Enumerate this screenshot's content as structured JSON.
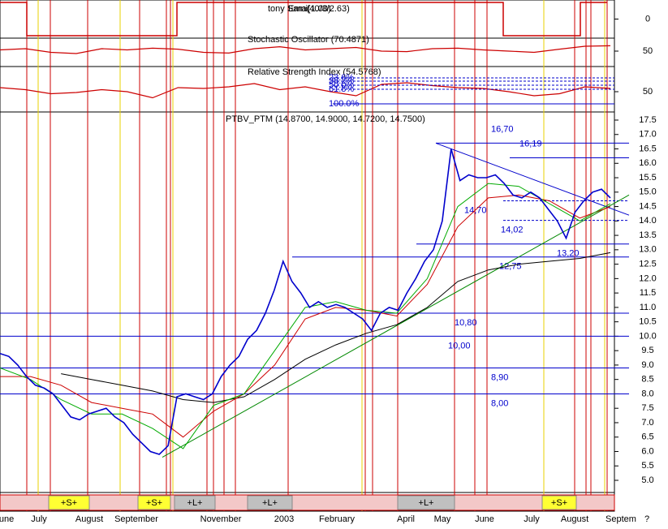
{
  "chart_data": [
    {
      "type": "step",
      "title": "tony Sami(1.00)",
      "subtitle": "Ema(40/3/2.63)",
      "color": "#cc0000",
      "values": [
        1,
        -1,
        1,
        -1,
        1
      ],
      "ylim": [
        -1,
        1
      ],
      "yticks": [
        0
      ]
    },
    {
      "type": "line",
      "title": "Stochastic Oscillator (70.4871)",
      "color": "#cc0000",
      "values": [
        55,
        60,
        45,
        40,
        60,
        55,
        62,
        58,
        45,
        42,
        60,
        68,
        55,
        60,
        65,
        50,
        48,
        60,
        62,
        55,
        50,
        45,
        58,
        70,
        72
      ],
      "ylim": [
        0,
        100
      ],
      "yticks": [
        50
      ]
    },
    {
      "type": "line",
      "title": "Relative Strength Index (54.5768)",
      "color": "#cc0000",
      "values": [
        60,
        55,
        45,
        48,
        55,
        50,
        35,
        60,
        58,
        62,
        70,
        55,
        62,
        50,
        40,
        68,
        72,
        65,
        60,
        58,
        50,
        40,
        45,
        62,
        58
      ],
      "annotations": [
        "23.6%",
        "38.2%",
        "50.0%",
        "61.8%",
        "100.0%"
      ],
      "ylim": [
        0,
        100
      ],
      "yticks": [
        50
      ]
    },
    {
      "type": "line",
      "title": "PTBV_PTM (14.8700, 14.9000, 14.7200, 14.7500)",
      "series": [
        {
          "color": "#0000cc",
          "values": [
            9.4,
            9.3,
            9.0,
            8.6,
            8.3,
            8.2,
            8.0,
            7.6,
            7.2,
            7.1,
            7.3,
            7.4,
            7.5,
            7.2,
            7.0,
            6.6,
            6.3,
            6.0,
            5.9,
            6.2,
            7.9,
            8.0,
            7.9,
            7.8,
            8.0,
            8.6,
            9.0,
            9.3,
            9.9,
            10.2,
            10.8,
            11.6,
            12.6,
            11.9,
            11.5,
            11.0,
            11.2,
            11.0,
            11.1,
            11.0,
            10.8,
            10.6,
            10.2,
            10.8,
            11.0,
            10.9,
            11.5,
            12.0,
            12.6,
            13.0,
            14.0,
            16.5,
            15.4,
            15.6,
            15.5,
            15.5,
            15.6,
            15.3,
            14.9,
            14.8,
            15.0,
            14.8,
            14.4,
            14.0,
            13.4,
            14.3,
            14.7,
            15.0,
            15.1,
            14.8
          ]
        },
        {
          "color": "#00aa00",
          "values": [
            8.9,
            8.5,
            7.8,
            7.3,
            7.3,
            6.8,
            6.1,
            7.6,
            8.0,
            9.5,
            11.0,
            11.2,
            10.9,
            10.8,
            12.0,
            14.5,
            15.3,
            15.2,
            14.6,
            14.0,
            14.6
          ]
        },
        {
          "color": "#cc0000",
          "values": [
            8.6,
            8.6,
            8.3,
            7.7,
            7.5,
            7.3,
            6.5,
            7.4,
            8.0,
            9.0,
            10.6,
            11.0,
            10.9,
            10.7,
            11.8,
            13.8,
            14.8,
            14.9,
            14.7,
            14.1,
            14.5
          ]
        },
        {
          "color": "#000000",
          "values": [
            null,
            null,
            8.7,
            8.5,
            8.3,
            8.1,
            7.8,
            7.7,
            7.9,
            8.5,
            9.2,
            9.7,
            10.1,
            10.4,
            11.0,
            11.9,
            12.3,
            12.5,
            12.6,
            12.7,
            12.9
          ]
        }
      ],
      "trendlines": [
        {
          "color": "#008800",
          "values": [
            5.8,
            14.9
          ]
        },
        {
          "color": "#0000cc",
          "values": [
            16.7,
            14.2
          ]
        }
      ],
      "levels": [
        {
          "value": 16.7,
          "label": "16,70"
        },
        {
          "value": 16.19,
          "label": "16,19"
        },
        {
          "value": 14.7,
          "label": "14,70"
        },
        {
          "value": 14.02,
          "label": "14,02"
        },
        {
          "value": 13.2,
          "label": "13,20"
        },
        {
          "value": 12.75,
          "label": "12,75"
        },
        {
          "value": 10.8,
          "label": "10,80"
        },
        {
          "value": 10.0,
          "label": "10,00"
        },
        {
          "value": 8.9,
          "label": "8,90"
        },
        {
          "value": 8.0,
          "label": "8,00"
        }
      ],
      "signals": [
        "+S+",
        "+S+",
        "+L+",
        "+L+",
        "+L+",
        "+S+"
      ],
      "xtick_labels": [
        "une",
        "July",
        "August",
        "September",
        "November",
        "2003",
        "February",
        "April",
        "May",
        "June",
        "July",
        "August",
        "Septem"
      ],
      "corner_label": "?",
      "ylim": [
        4.7,
        17.9
      ],
      "yticks": [
        {
          "value": 5,
          "label": "5.0"
        },
        5.5,
        {
          "value": 6,
          "label": "6.0"
        },
        6.5,
        {
          "value": 7,
          "label": "7.0"
        },
        7.5,
        {
          "value": 8,
          "label": "8.0"
        },
        8.5,
        {
          "value": 9,
          "label": "9.0"
        },
        9.5,
        {
          "value": 10,
          "label": "10.0"
        },
        10.5,
        {
          "value": 11,
          "label": "11.0"
        },
        11.5,
        {
          "value": 12,
          "label": "12.0"
        },
        12.5,
        {
          "value": 13,
          "label": "13.0"
        },
        13.5,
        {
          "value": 14,
          "label": "14.0"
        },
        14.5,
        {
          "value": 15,
          "label": "15.0"
        },
        15.5,
        {
          "value": 16,
          "label": "16.0"
        },
        16.5,
        {
          "value": 17,
          "label": "17.0"
        },
        17.5
      ]
    }
  ]
}
